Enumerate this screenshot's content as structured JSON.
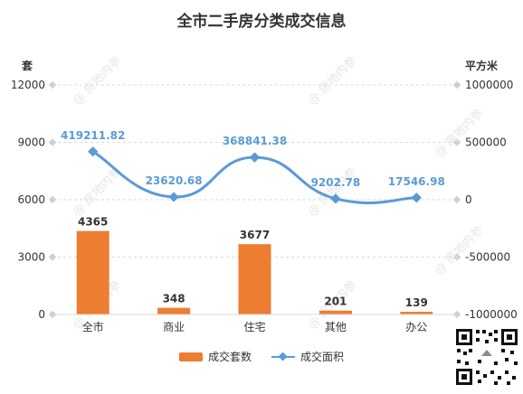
{
  "chart_data": {
    "type": "bar+line",
    "title": "全市二手房分类成交信息",
    "categories": [
      "全市",
      "商业",
      "住宅",
      "其他",
      "办公"
    ],
    "left_axis": {
      "unit": "套",
      "min": 0,
      "max": 12000,
      "ticks": [
        0,
        3000,
        6000,
        9000,
        12000
      ]
    },
    "right_axis": {
      "unit": "平方米",
      "min": -1000000,
      "max": 1000000,
      "ticks": [
        -1000000,
        -500000,
        0,
        500000,
        1000000
      ]
    },
    "series": [
      {
        "name": "成交套数",
        "type": "bar",
        "axis": "left",
        "color": "#ED7D31",
        "values": [
          4365,
          348,
          3677,
          201,
          139
        ],
        "labels": [
          "4365",
          "348",
          "3677",
          "201",
          "139"
        ]
      },
      {
        "name": "成交面积",
        "type": "line",
        "axis": "right",
        "color": "#5B9BD5",
        "smooth": true,
        "values": [
          419211.82,
          23620.68,
          368841.38,
          9202.78,
          17546.98
        ],
        "labels": [
          "419211.82",
          "23620.68",
          "368841.38",
          "9202.78",
          "17546.98"
        ]
      }
    ],
    "legend": "bottom",
    "grid": "horizontal-dashed"
  },
  "watermark_text": "@ 房地内参"
}
